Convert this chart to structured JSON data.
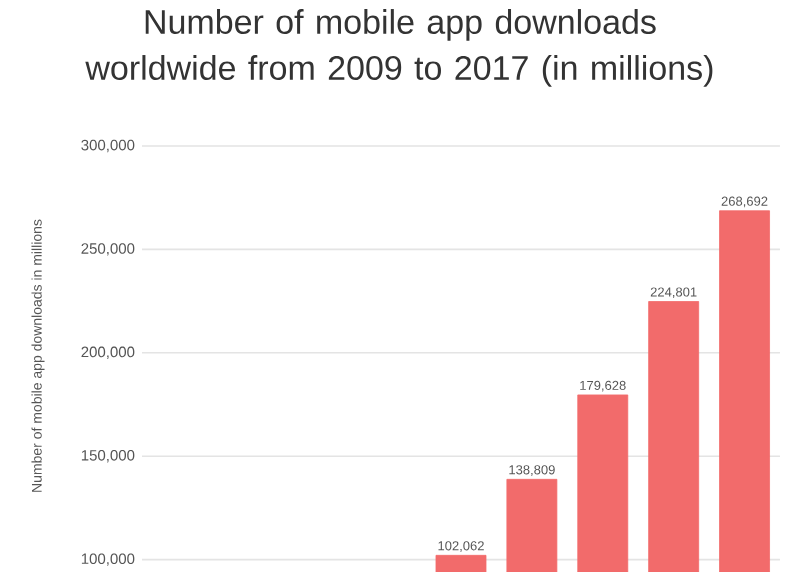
{
  "chart_data": {
    "type": "bar",
    "title": "Number of mobile app downloads worldwide from 2009 to 2017 (in millions)",
    "ylabel": "Number of mobile app downloads in millions",
    "categories": [
      null,
      null,
      null,
      null,
      null,
      null,
      null,
      null,
      null
    ],
    "values": [
      null,
      null,
      null,
      null,
      102062,
      138809,
      179628,
      224801,
      268692
    ],
    "color": "#f26b6b",
    "ylim": [
      94000,
      300000
    ],
    "yticks": [
      {
        "value": 100000,
        "label": "100,000"
      },
      {
        "value": 150000,
        "label": "150,000"
      },
      {
        "value": 200000,
        "label": "200,000"
      },
      {
        "value": 250000,
        "label": "250,000"
      },
      {
        "value": 300000,
        "label": "300,000"
      }
    ],
    "value_labels": [
      null,
      null,
      null,
      null,
      "102,062",
      "138,809",
      "179,628",
      "224,801",
      "268,692"
    ],
    "grid": "y",
    "tick_labels": "y"
  }
}
